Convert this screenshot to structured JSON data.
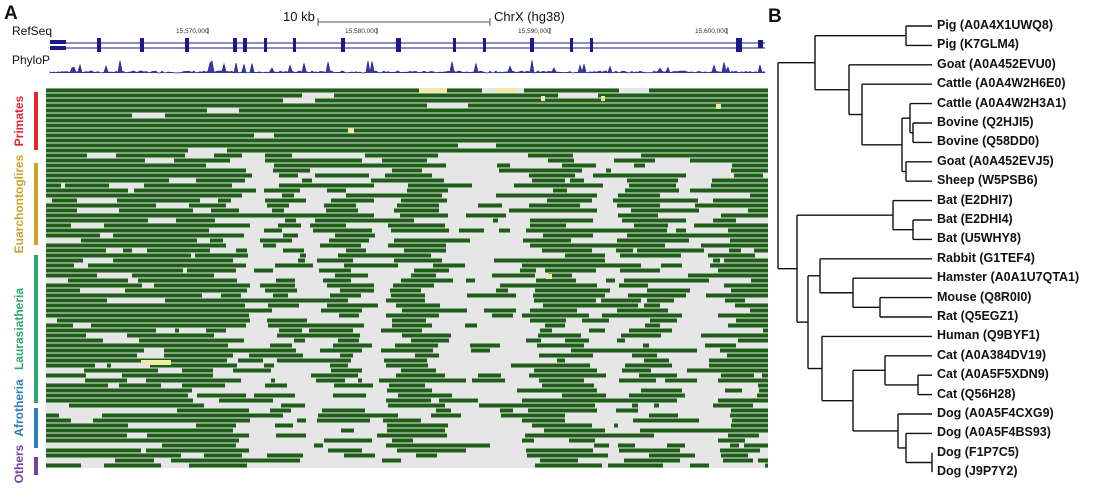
{
  "panel_a": {
    "letter": "A",
    "scale_label": "10 kb",
    "region_label": "ChrX (hg38)",
    "tracks": [
      "RefSeq",
      "PhyloP"
    ],
    "coordinates": [
      "15,570,000",
      "15,580,000",
      "15,590,000",
      "15,600,000"
    ],
    "groups": [
      {
        "name": "Primates",
        "color": "#e8242b"
      },
      {
        "name": "Euarchontoglires",
        "color": "#c9a227"
      },
      {
        "name": "Laurasiatheria",
        "color": "#2ca870"
      },
      {
        "name": "Afrotheria",
        "color": "#2a7fb8"
      },
      {
        "name": "Others",
        "color": "#7b3fa0"
      }
    ],
    "alignment_color": "#1f5e18"
  },
  "panel_b": {
    "letter": "B",
    "leaves": [
      "Pig (A0A4X1UWQ8)",
      "Pig (K7GLM4)",
      "Goat (A0A452EVU0)",
      "Cattle (A0A4W2H6E0)",
      "Cattle (A0A4W2H3A1)",
      "Bovine (Q2HJI5)",
      "Bovine (Q58DD0)",
      "Goat (A0A452EVJ5)",
      "Sheep (W5PSB6)",
      "Bat (E2DHI7)",
      "Bat (E2DHI4)",
      "Bat (U5WHY8)",
      "Rabbit (G1TEF4)",
      "Hamster (A0A1U7QTA1)",
      "Mouse (Q8R0I0)",
      "Rat (Q5EGZ1)",
      "Human (Q9BYF1)",
      "Cat (A0A384DV19)",
      "Cat (A0A5F5XDN9)",
      "Cat (Q56H28)",
      "Dog (A0A5F4CXG9)",
      "Dog (A0A5F4BS93)",
      "Dog (F1P7C5)",
      "Dog (J9P7Y2)"
    ]
  }
}
